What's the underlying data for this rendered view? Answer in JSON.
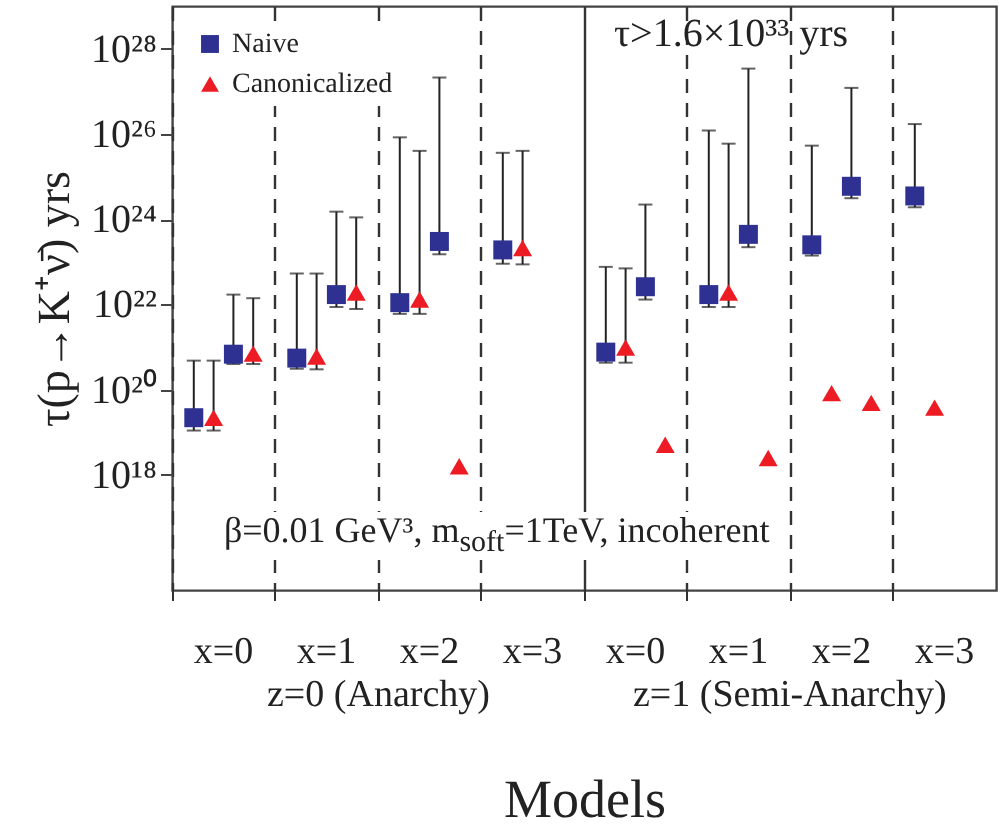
{
  "chart_data": {
    "type": "scatter",
    "xlabel": "Models",
    "ylabel": "τ(p→K⁺ν̄) yrs",
    "annotations": [
      "τ>1.6×10³³ yrs",
      "β=0.01 GeV³, m$_{soft}$=1TeV, incoherent",
      "z=0 (Anarchy)",
      "z=1 (Semi-Anarchy)"
    ],
    "categories": [
      "x=0",
      "x=1",
      "x=2",
      "x=3",
      "x=0",
      "x=1",
      "x=2",
      "x=3"
    ],
    "grid": "x",
    "log": "y",
    "ylim": [
      2000000000000000.0,
      1e+29
    ],
    "yticks": [
      {
        "value": 1e+18,
        "label": "10¹⁸"
      },
      {
        "value": 1e+20,
        "label": "10²⁰"
      },
      {
        "value": 1e+22,
        "label": "10²²"
      },
      {
        "value": 1e+24,
        "label": "10²⁴"
      },
      {
        "value": 1e+26,
        "label": "10²⁶"
      },
      {
        "value": 1e+28,
        "label": "10²⁸"
      }
    ],
    "legend": "top left",
    "series": [
      {
        "name": "Naive",
        "color": "#2e3192",
        "marker": "square",
        "values": [
          2.2e+19,
          5.5e+20,
          1.1e+22,
          1.9e+23,
          7.6e+20,
          1.7e+22,
          2.5e+23,
          3.5e+24
        ],
        "errors": [
          [
            1.1e+19,
            4.8e+20
          ],
          [
            3.1e+20,
            5.3e+22
          ],
          [
            6e+21,
            8.3e+25
          ],
          [
            9e+22,
            3.6e+25
          ],
          [
            4.3e+20,
            7.6e+22
          ],
          [
            8.7e+21,
            1.2e+26
          ],
          [
            1.4e+23,
            5.3e+25
          ],
          [
            1.9e+24,
            1.7e+26
          ]
        ]
      },
      {
        "name": "Canonicalized",
        "color": "#ed1c24",
        "marker": "triangle",
        "values": [
          2.2e+19,
          6e+20,
          1.3e+22,
          2.1e+23,
          9.8e+20,
          1.9e+22,
          8.3e+19,
          3.8e+19
        ],
        "errors": [
          [
            1.1e+19,
            4.8e+20
          ],
          [
            3e+20,
            5.3e+22
          ],
          [
            6e+21,
            4e+25
          ],
          [
            8.7e+22,
            4e+25
          ],
          [
            4.3e+20,
            7e+22
          ],
          [
            8.7e+21,
            5.9e+25
          ],
          null,
          null
        ]
      },
      {
        "color": "#2e3192",
        "marker": "square",
        "values": [
          6.8e+20,
          1.7e+22,
          3e+23,
          null,
          2.6e+22,
          4.4e+23,
          5.9e+24,
          null
        ],
        "errors": [
          [
            4e+20,
            1.7e+22
          ],
          [
            8.7e+21,
            1.5e+24
          ],
          [
            1.5e+23,
            2.1e+27
          ],
          null,
          [
            1.3e+22,
            2.2e+24
          ],
          [
            2.2e+23,
            3.4e+27
          ],
          [
            3.1e+24,
            1.2e+27
          ],
          null
        ]
      },
      {
        "color": "#ed1c24",
        "marker": "triangle",
        "values": [
          7e+20,
          1.9e+22,
          1.6e+18,
          null,
          5.1e+18,
          2.5e+18,
          4.9e+19,
          null
        ],
        "errors": [
          [
            4e+20,
            1.4e+22
          ],
          [
            7.8e+21,
            1.1e+24
          ],
          null,
          null,
          null,
          null,
          null,
          null
        ]
      }
    ]
  }
}
